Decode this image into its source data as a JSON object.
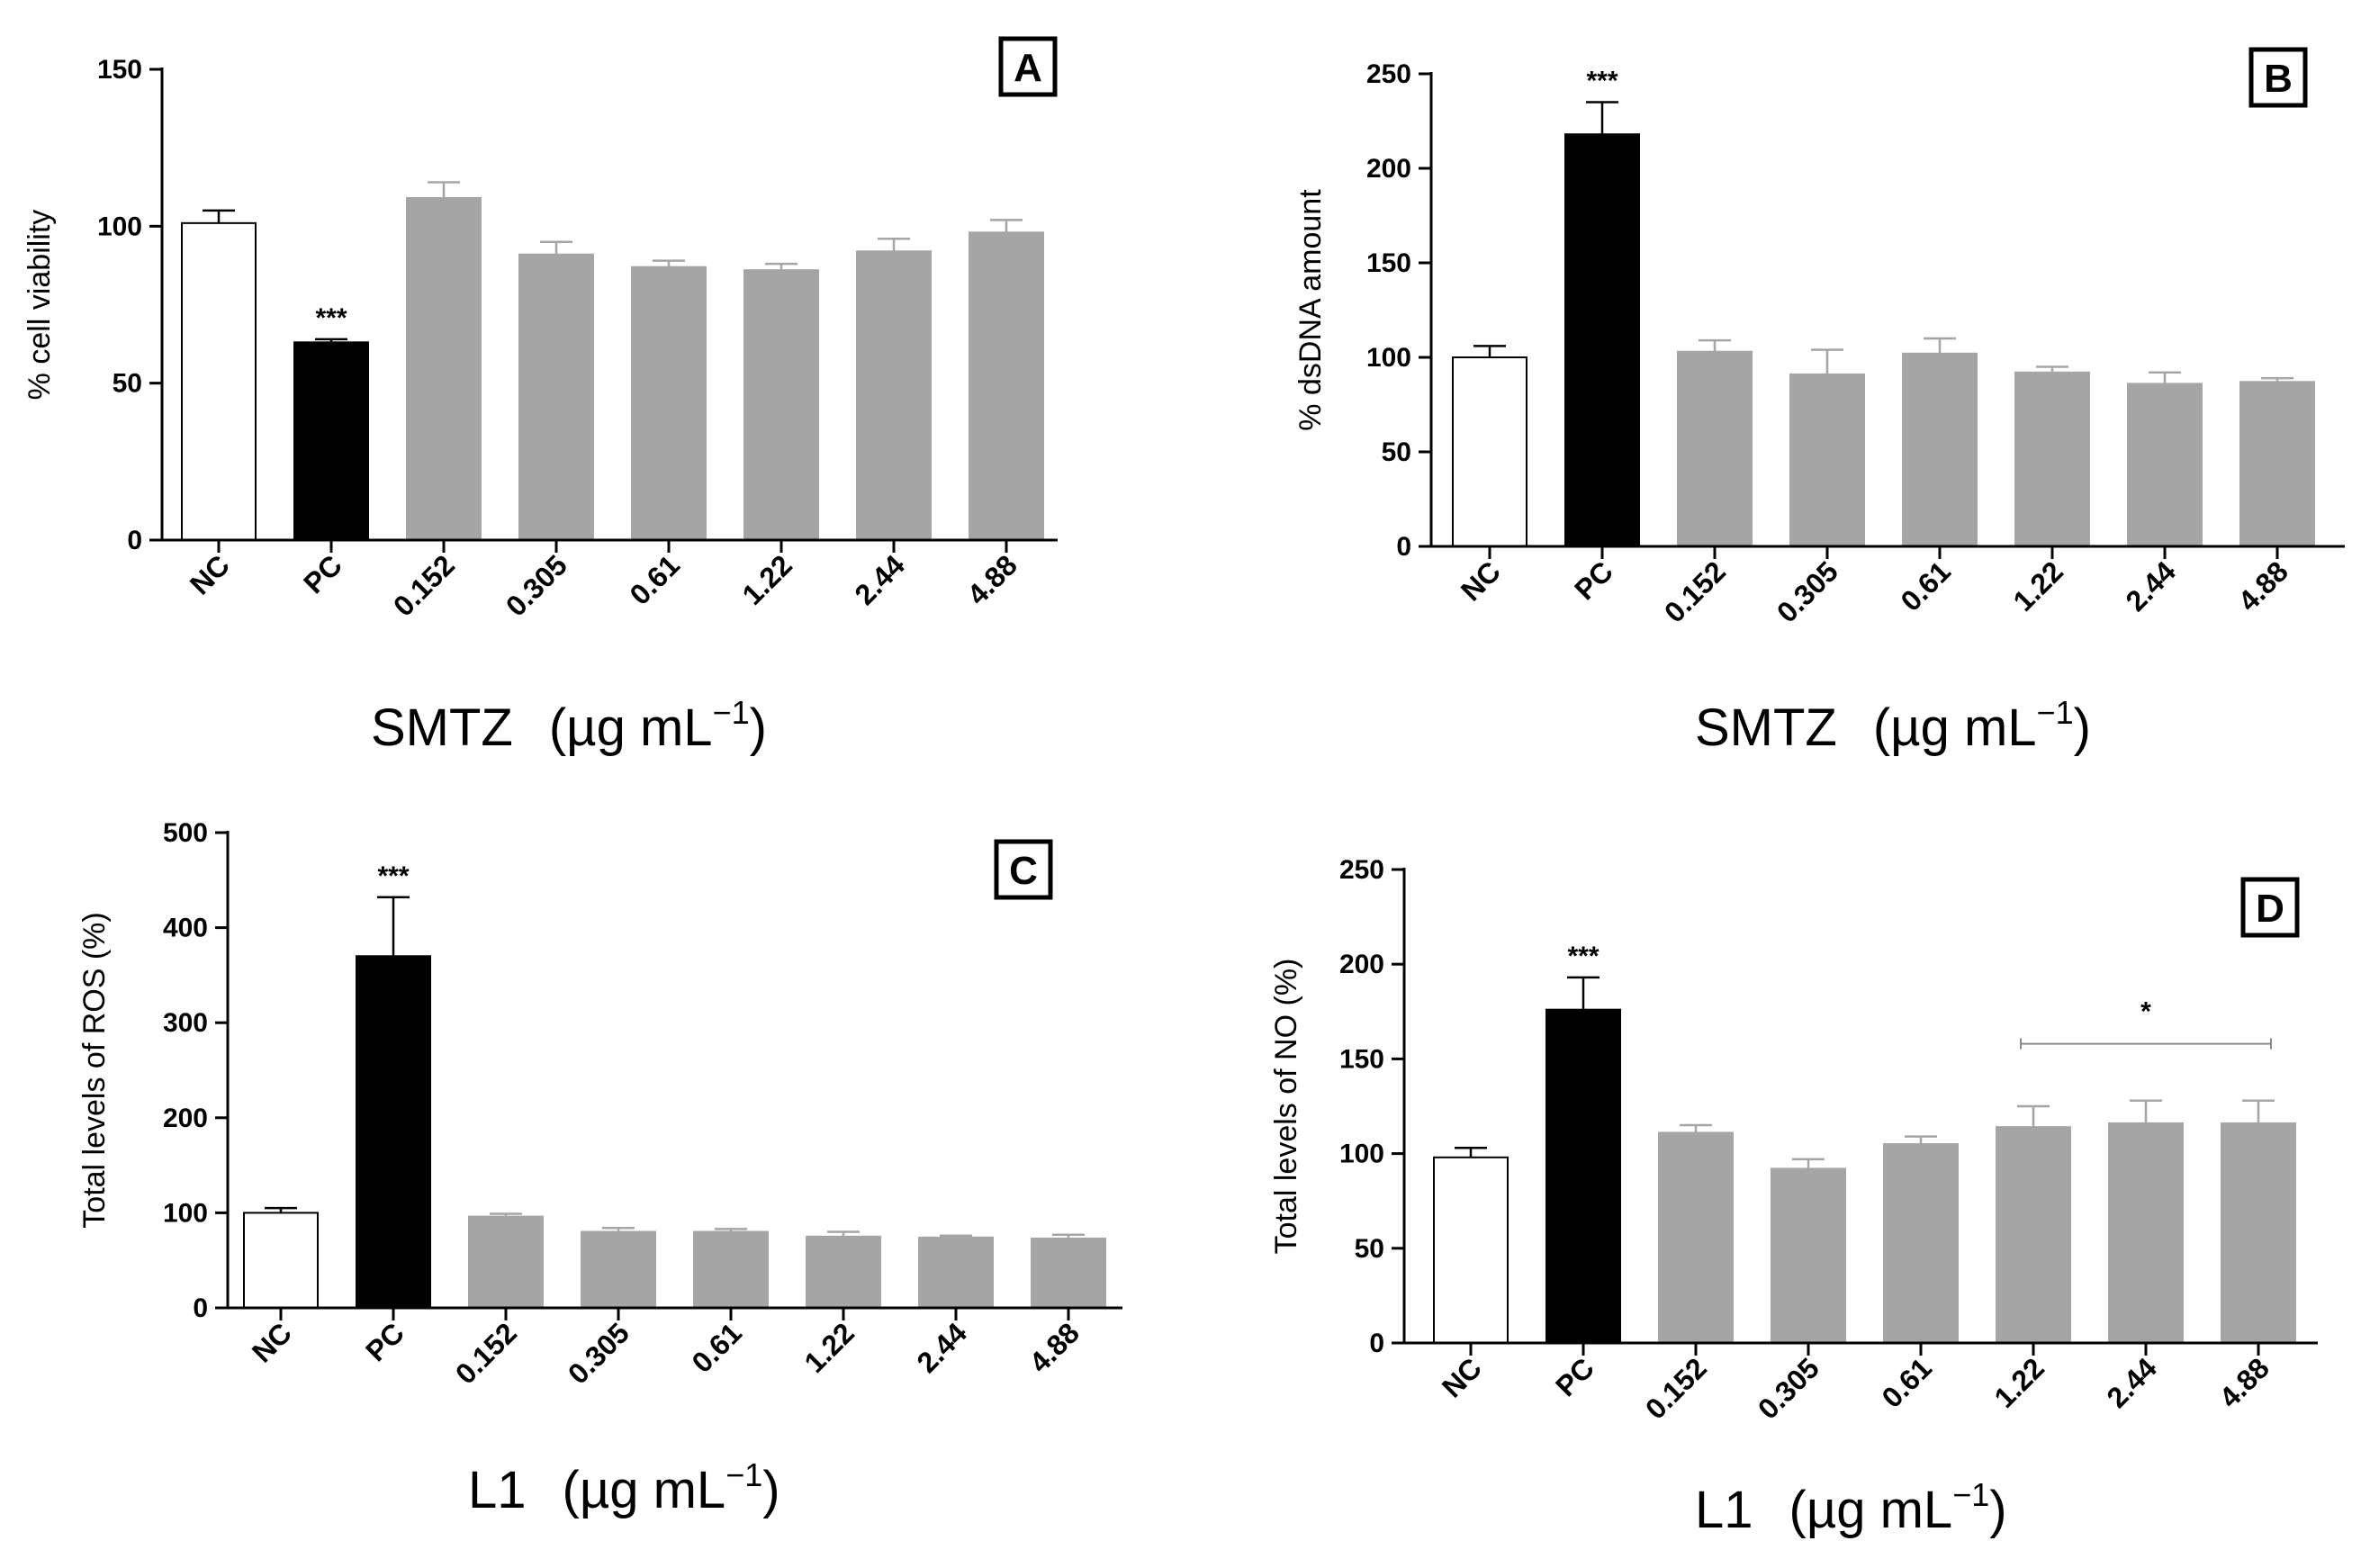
{
  "chart_data": [
    {
      "type": "bar",
      "panel": "A",
      "categories": [
        "NC",
        "PC",
        "0.152",
        "0.305",
        "0.61",
        "1.22",
        "2.44",
        "4.88"
      ],
      "values": [
        101,
        63,
        109,
        91,
        87,
        86,
        92,
        98
      ],
      "errors": [
        4,
        1,
        5,
        4,
        2,
        2,
        4,
        4
      ],
      "bar_colors": [
        "#ffffff",
        "#000000",
        "#a5a5a7",
        "#a5a5a7",
        "#a5a5a7",
        "#a5a5a7",
        "#a5a5a7",
        "#a5a5a7"
      ],
      "significance": [
        {
          "category_index": 1,
          "label": "***"
        }
      ],
      "title": "",
      "ylabel": "% cell viability",
      "xlabel_main": "SMTZ",
      "xlabel_unit": "(µg mL",
      "xlabel_sup": "−1",
      "xlabel_close": ")",
      "ylim": [
        0,
        150
      ],
      "yticks": [
        0,
        50,
        100,
        150
      ],
      "grid": false
    },
    {
      "type": "bar",
      "panel": "B",
      "categories": [
        "NC",
        "PC",
        "0.152",
        "0.305",
        "0.61",
        "1.22",
        "2.44",
        "4.88"
      ],
      "values": [
        100,
        218,
        103,
        91,
        102,
        92,
        86,
        87
      ],
      "errors": [
        6,
        17,
        6,
        13,
        8,
        3,
        6,
        2
      ],
      "bar_colors": [
        "#ffffff",
        "#000000",
        "#a5a5a7",
        "#a5a5a7",
        "#a5a5a7",
        "#a5a5a7",
        "#a5a5a7",
        "#a5a5a7"
      ],
      "significance": [
        {
          "category_index": 1,
          "label": "***"
        }
      ],
      "title": "",
      "ylabel": "% dsDNA amount",
      "xlabel_main": "SMTZ",
      "xlabel_unit": "(µg mL",
      "xlabel_sup": "−1",
      "xlabel_close": ")",
      "ylim": [
        0,
        250
      ],
      "yticks": [
        0,
        50,
        100,
        150,
        200,
        250
      ],
      "grid": false
    },
    {
      "type": "bar",
      "panel": "C",
      "categories": [
        "NC",
        "PC",
        "0.152",
        "0.305",
        "0.61",
        "1.22",
        "2.44",
        "4.88"
      ],
      "values": [
        100,
        370,
        96,
        80,
        80,
        75,
        74,
        73
      ],
      "errors": [
        5,
        62,
        3,
        4,
        3,
        5,
        2,
        4
      ],
      "bar_colors": [
        "#ffffff",
        "#000000",
        "#a5a5a7",
        "#a5a5a7",
        "#a5a5a7",
        "#a5a5a7",
        "#a5a5a7",
        "#a5a5a7"
      ],
      "significance": [
        {
          "category_index": 1,
          "label": "***"
        }
      ],
      "title": "",
      "ylabel": "Total levels of ROS (%)",
      "xlabel_main": "L1",
      "xlabel_unit": "(µg mL",
      "xlabel_sup": "−1",
      "xlabel_close": ")",
      "ylim": [
        0,
        500
      ],
      "yticks": [
        0,
        100,
        200,
        300,
        400,
        500
      ],
      "grid": false
    },
    {
      "type": "bar",
      "panel": "D",
      "categories": [
        "NC",
        "PC",
        "0.152",
        "0.305",
        "0.61",
        "1.22",
        "2.44",
        "4.88"
      ],
      "values": [
        98,
        176,
        111,
        92,
        105,
        114,
        116,
        116
      ],
      "errors": [
        5,
        17,
        4,
        5,
        4,
        11,
        12,
        12
      ],
      "bar_colors": [
        "#ffffff",
        "#000000",
        "#a5a5a7",
        "#a5a5a7",
        "#a5a5a7",
        "#a5a5a7",
        "#a5a5a7",
        "#a5a5a7"
      ],
      "significance": [
        {
          "category_index": 1,
          "label": "***"
        },
        {
          "group": [
            5,
            7
          ],
          "label": "*",
          "level": 158
        }
      ],
      "title": "",
      "ylabel": "Total levels of NO (%)",
      "xlabel_main": "L1",
      "xlabel_unit": "(µg mL",
      "xlabel_sup": "−1",
      "xlabel_close": ")",
      "ylim": [
        0,
        250
      ],
      "yticks": [
        0,
        50,
        100,
        150,
        200,
        250
      ],
      "grid": false
    }
  ]
}
